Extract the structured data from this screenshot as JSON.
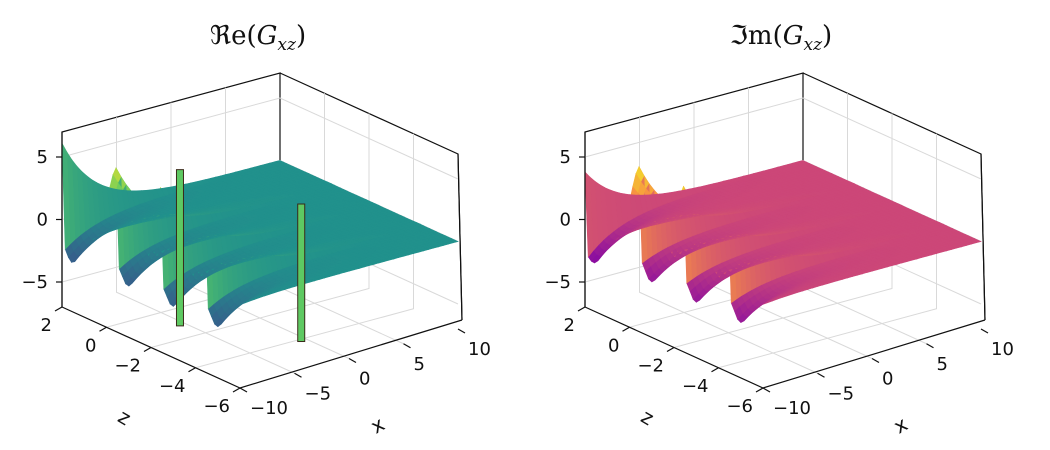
{
  "chart_data": [
    {
      "type": "surface",
      "title": "ℜe(Gₓ₂)",
      "title_parts": {
        "fn": "ℜe",
        "var": "G",
        "sub": "xz"
      },
      "colormap": "viridis",
      "x_label": "x",
      "z_label": "z",
      "x_ticks": [
        "−10",
        "−5",
        "0",
        "5",
        "10"
      ],
      "z_ticks": [
        "2",
        "0",
        "−2",
        "−4",
        "−6"
      ],
      "value_ticks": [
        "5",
        "0",
        "−5"
      ],
      "xlim": [
        -10,
        10
      ],
      "zlim": [
        -6,
        2
      ],
      "value_lim": [
        -7,
        7
      ],
      "peaks": [
        {
          "z": 2.0,
          "max": 6.1,
          "min": -5.2
        },
        {
          "z": -0.5,
          "max": 6.2,
          "min": -5.0
        },
        {
          "z": -2.5,
          "max": 6.3,
          "min": -5.0
        },
        {
          "z": -4.5,
          "max": 6.4,
          "min": -5.0
        }
      ],
      "spikes": [
        {
          "x": -8.0,
          "z": -2.3,
          "value": 7.0
        },
        {
          "x": -3.0,
          "z": -5.3,
          "value": 5.5
        }
      ]
    },
    {
      "type": "surface",
      "title": "ℑm(Gₓ₂)",
      "title_parts": {
        "fn": "ℑm",
        "var": "G",
        "sub": "xz"
      },
      "colormap": "plasma",
      "x_label": "x",
      "z_label": "z",
      "x_ticks": [
        "−10",
        "−5",
        "0",
        "5",
        "10"
      ],
      "z_ticks": [
        "2",
        "0",
        "−2",
        "−4",
        "−6"
      ],
      "value_ticks": [
        "5",
        "0",
        "−5"
      ],
      "xlim": [
        -10,
        10
      ],
      "zlim": [
        -6,
        2
      ],
      "value_lim": [
        -7,
        7
      ],
      "peaks": [
        {
          "z": 2.0,
          "max": 3.8,
          "min": -5.0
        },
        {
          "z": -0.5,
          "max": 6.3,
          "min": -4.5
        },
        {
          "z": -2.5,
          "max": 6.4,
          "min": -4.5
        },
        {
          "z": -4.5,
          "max": 6.5,
          "min": -4.5
        }
      ],
      "spikes": []
    }
  ]
}
